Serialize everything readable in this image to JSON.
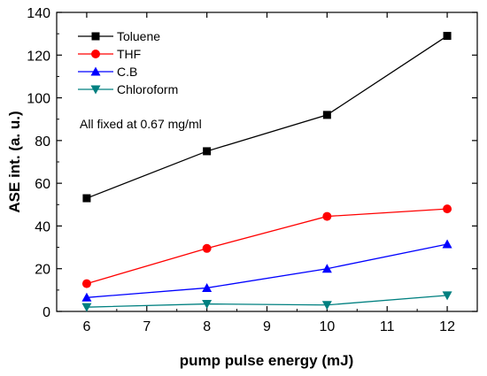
{
  "chart_data": {
    "type": "line",
    "title": "",
    "xlabel": "pump pulse energy (mJ)",
    "ylabel": "ASE int. (a. u.)",
    "xlim": [
      5.5,
      12.5
    ],
    "ylim": [
      0,
      140
    ],
    "xticks": [
      6,
      7,
      8,
      9,
      10,
      11,
      12
    ],
    "yticks": [
      0,
      20,
      40,
      60,
      80,
      100,
      120,
      140
    ],
    "grid": false,
    "legend_position": "top-left",
    "annotation": "All fixed at 0.67 mg/ml",
    "x": [
      6,
      8,
      10,
      12
    ],
    "series": [
      {
        "name": "Toluene",
        "marker": "square",
        "color": "#000000",
        "values": [
          53,
          75,
          92,
          129
        ]
      },
      {
        "name": "THF",
        "marker": "circle",
        "color": "#ff0000",
        "values": [
          13,
          29.5,
          44.5,
          48
        ]
      },
      {
        "name": "C.B",
        "marker": "triangle-up",
        "color": "#0000ff",
        "values": [
          6.5,
          11,
          20,
          31.5
        ]
      },
      {
        "name": "Chloroform",
        "marker": "triangle-down",
        "color": "#008080",
        "values": [
          2,
          3.5,
          3,
          7.5
        ]
      }
    ]
  }
}
